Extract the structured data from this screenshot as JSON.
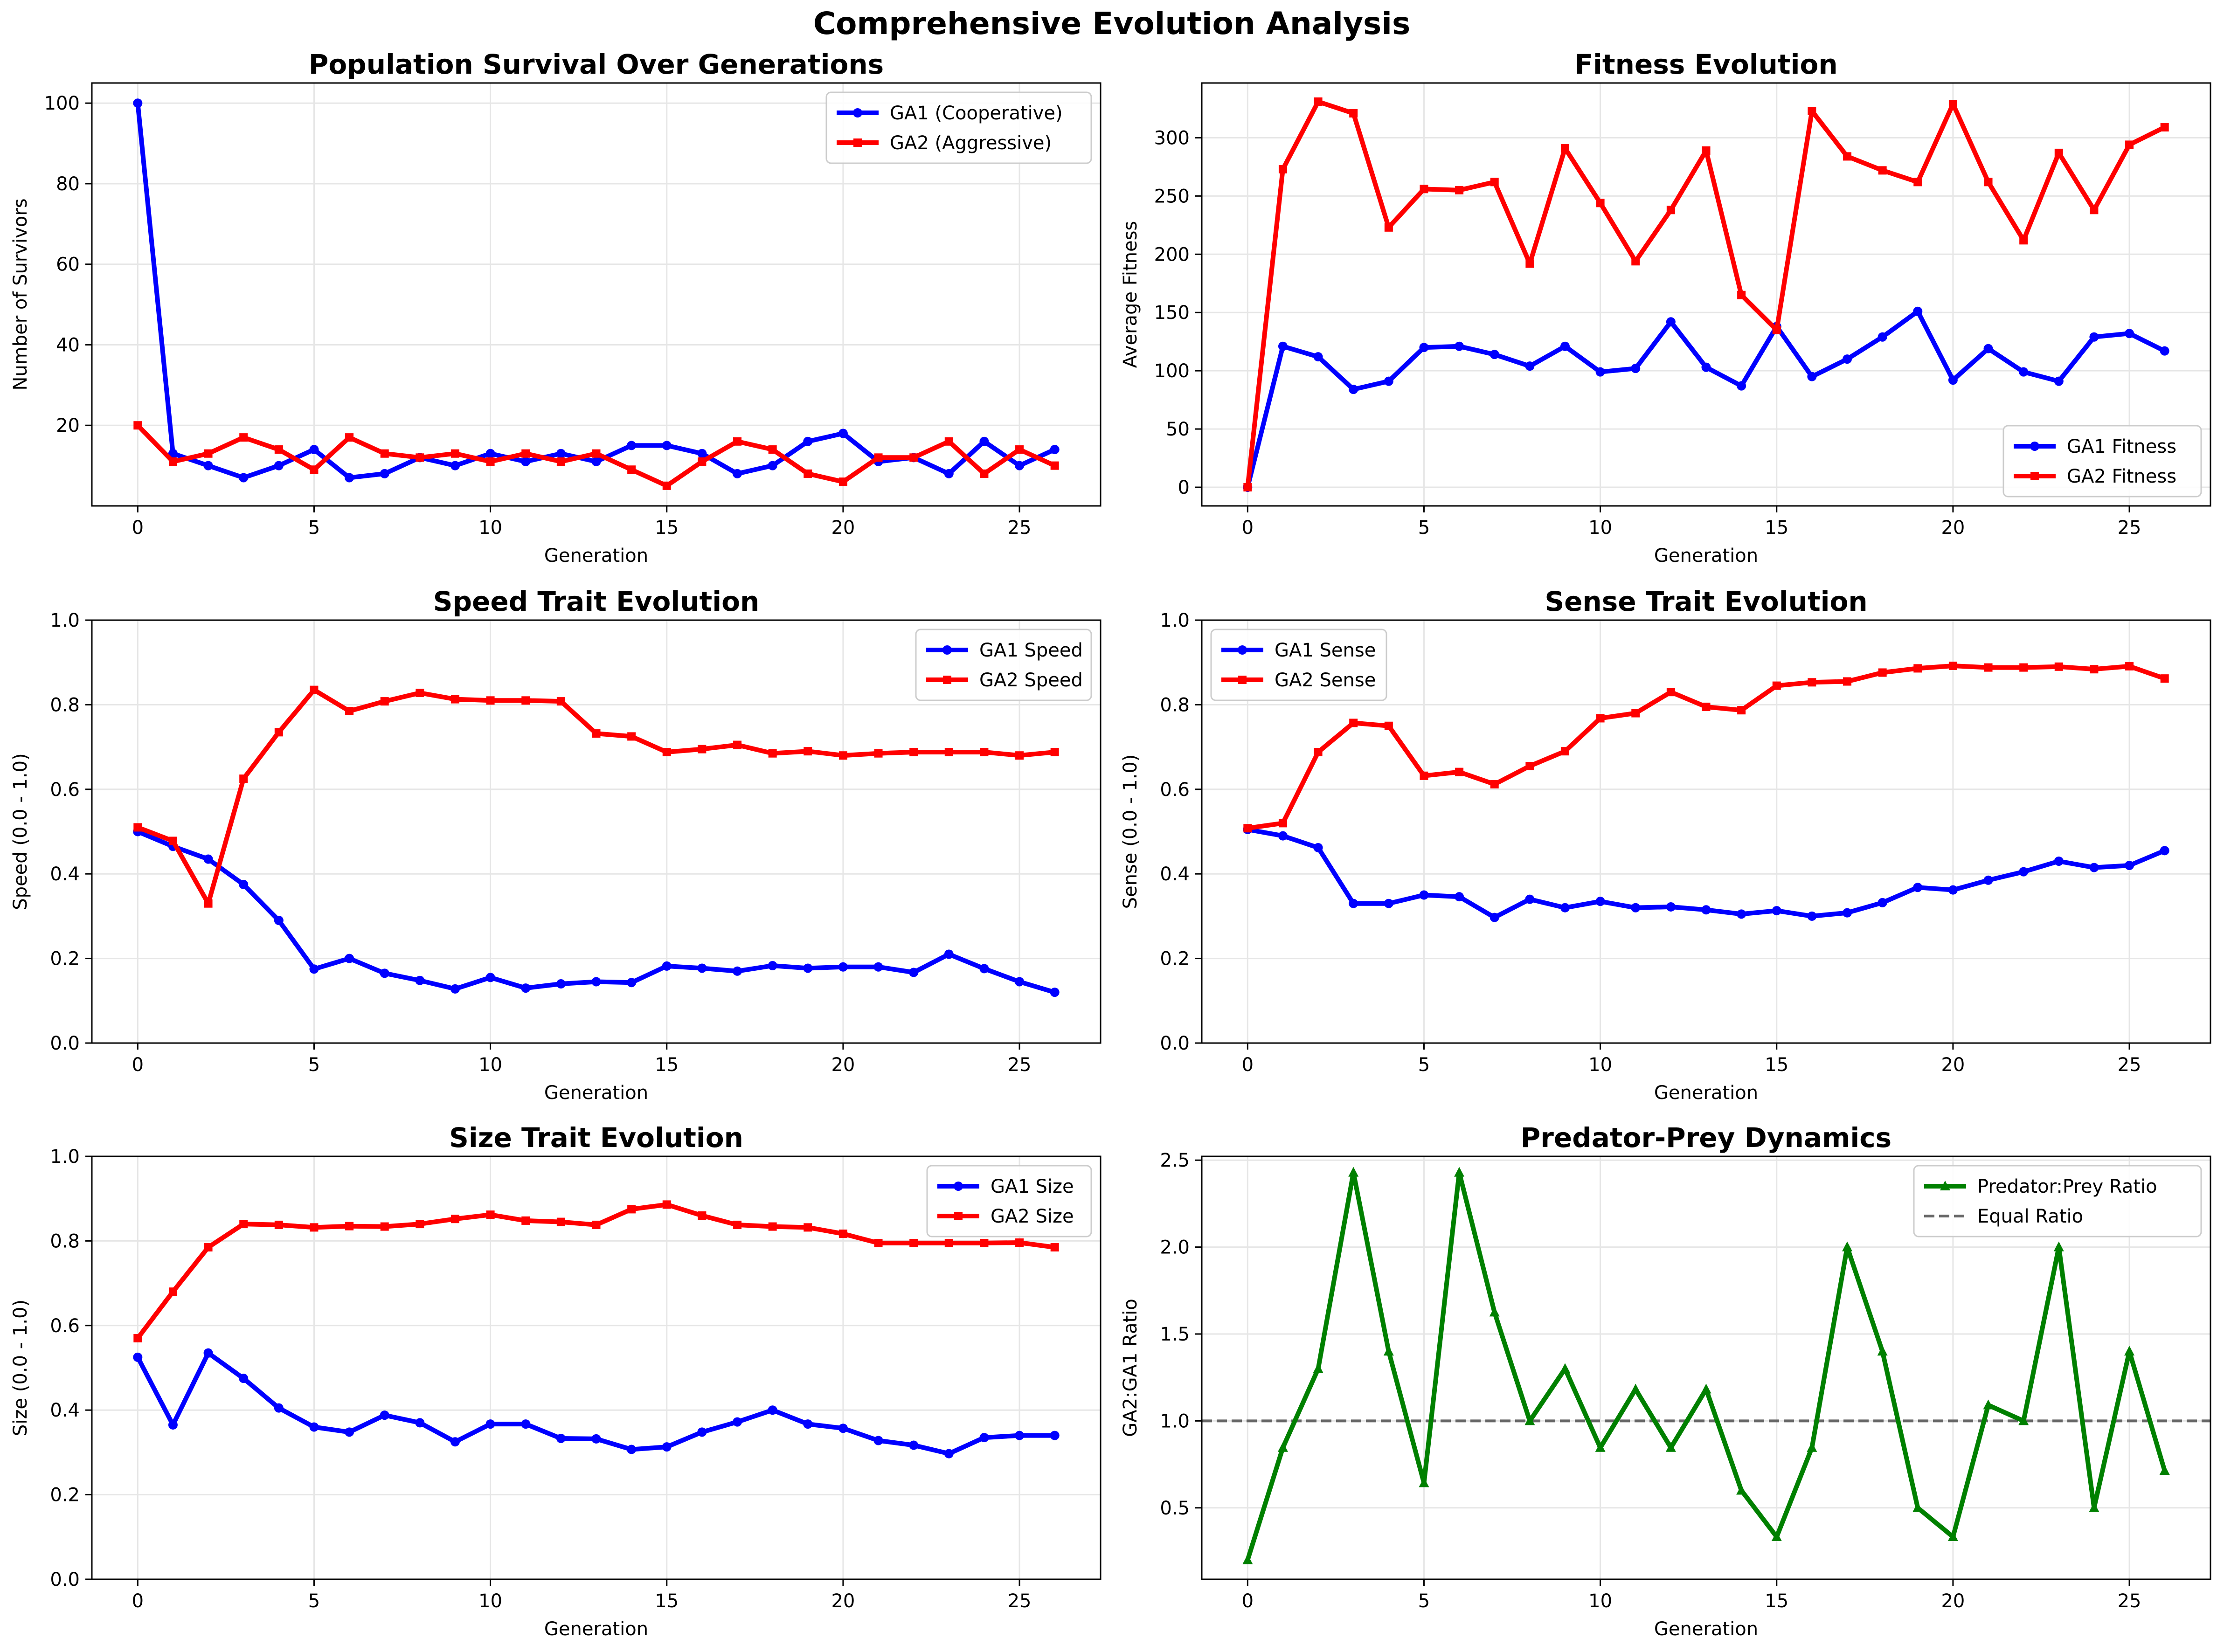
{
  "figure": {
    "title": "Comprehensive Evolution Analysis"
  },
  "colors": {
    "ga1": "#0000ff",
    "ga2": "#ff0000",
    "ratio": "#008000",
    "equal_line": "#666666",
    "grid": "#e6e6e6"
  },
  "chart_data": [
    {
      "id": "population",
      "type": "line",
      "title": "Population Survival Over Generations",
      "xlabel": "Generation",
      "ylabel": "Number of Survivors",
      "xlim": [
        -1.3,
        27.3
      ],
      "ylim": [
        0,
        105
      ],
      "xticks": [
        0,
        5,
        10,
        15,
        20,
        25
      ],
      "yticks": [
        20,
        40,
        60,
        80,
        100
      ],
      "ytick_labels": [
        "20",
        "40",
        "60",
        "80",
        "100"
      ],
      "legend": "top-right",
      "grid": true,
      "x": [
        0,
        1,
        2,
        3,
        4,
        5,
        6,
        7,
        8,
        9,
        10,
        11,
        12,
        13,
        14,
        15,
        16,
        17,
        18,
        19,
        20,
        21,
        22,
        23,
        24,
        25,
        26
      ],
      "series": [
        {
          "name": "GA1 (Cooperative)",
          "color": "#0000ff",
          "marker": "circle",
          "values": [
            100,
            13,
            10,
            7,
            10,
            14,
            7,
            8,
            12,
            10,
            13,
            11,
            13,
            11,
            15,
            15,
            13,
            8,
            10,
            16,
            18,
            11,
            12,
            8,
            16,
            10,
            14
          ]
        },
        {
          "name": "GA2 (Aggressive)",
          "color": "#ff0000",
          "marker": "square",
          "values": [
            20,
            11,
            13,
            17,
            14,
            9,
            17,
            13,
            12,
            13,
            11,
            13,
            11,
            13,
            9,
            5,
            11,
            16,
            14,
            8,
            6,
            12,
            12,
            16,
            8,
            14,
            10
          ]
        }
      ]
    },
    {
      "id": "fitness",
      "type": "line",
      "title": "Fitness Evolution",
      "xlabel": "Generation",
      "ylabel": "Average Fitness",
      "xlim": [
        -1.3,
        27.3
      ],
      "ylim": [
        -16,
        347
      ],
      "xticks": [
        0,
        5,
        10,
        15,
        20,
        25
      ],
      "yticks": [
        0,
        50,
        100,
        150,
        200,
        250,
        300
      ],
      "ytick_labels": [
        "0",
        "50",
        "100",
        "150",
        "200",
        "250",
        "300"
      ],
      "legend": "bottom-right",
      "grid": true,
      "x": [
        0,
        1,
        2,
        3,
        4,
        5,
        6,
        7,
        8,
        9,
        10,
        11,
        12,
        13,
        14,
        15,
        16,
        17,
        18,
        19,
        20,
        21,
        22,
        23,
        24,
        25,
        26
      ],
      "series": [
        {
          "name": "GA1 Fitness",
          "color": "#0000ff",
          "marker": "circle",
          "values": [
            0,
            121,
            112,
            84,
            91,
            120,
            121,
            114,
            104,
            121,
            99,
            102,
            142,
            103,
            87,
            138,
            95,
            110,
            129,
            151,
            92,
            119,
            99,
            91,
            129,
            132,
            117
          ]
        },
        {
          "name": "GA2 Fitness",
          "color": "#ff0000",
          "marker": "square",
          "values": [
            0,
            273,
            331,
            321,
            223,
            256,
            255,
            262,
            192,
            291,
            244,
            194,
            238,
            289,
            165,
            135,
            323,
            284,
            272,
            262,
            329,
            262,
            212,
            287,
            238,
            294,
            309
          ]
        }
      ]
    },
    {
      "id": "speed",
      "type": "line",
      "title": "Speed Trait Evolution",
      "xlabel": "Generation",
      "ylabel": "Speed (0.0 - 1.0)",
      "xlim": [
        -1.3,
        27.3
      ],
      "ylim": [
        0,
        1
      ],
      "xticks": [
        0,
        5,
        10,
        15,
        20,
        25
      ],
      "yticks": [
        0,
        0.2,
        0.4,
        0.6,
        0.8,
        1.0
      ],
      "ytick_labels": [
        "0.0",
        "0.2",
        "0.4",
        "0.6",
        "0.8",
        "1.0"
      ],
      "legend": "top-right",
      "grid": true,
      "x": [
        0,
        1,
        2,
        3,
        4,
        5,
        6,
        7,
        8,
        9,
        10,
        11,
        12,
        13,
        14,
        15,
        16,
        17,
        18,
        19,
        20,
        21,
        22,
        23,
        24,
        25,
        26
      ],
      "series": [
        {
          "name": "GA1 Speed",
          "color": "#0000ff",
          "marker": "circle",
          "values": [
            0.5,
            0.465,
            0.435,
            0.375,
            0.29,
            0.175,
            0.2,
            0.165,
            0.148,
            0.128,
            0.155,
            0.13,
            0.14,
            0.145,
            0.143,
            0.182,
            0.177,
            0.17,
            0.183,
            0.177,
            0.18,
            0.18,
            0.167,
            0.21,
            0.176,
            0.145,
            0.12
          ]
        },
        {
          "name": "GA2 Speed",
          "color": "#ff0000",
          "marker": "square",
          "values": [
            0.51,
            0.478,
            0.33,
            0.625,
            0.735,
            0.835,
            0.785,
            0.808,
            0.828,
            0.813,
            0.81,
            0.81,
            0.808,
            0.732,
            0.725,
            0.688,
            0.695,
            0.705,
            0.685,
            0.69,
            0.68,
            0.685,
            0.688,
            0.688,
            0.688,
            0.68,
            0.688
          ]
        }
      ]
    },
    {
      "id": "sense",
      "type": "line",
      "title": "Sense Trait Evolution",
      "xlabel": "Generation",
      "ylabel": "Sense (0.0 - 1.0)",
      "xlim": [
        -1.3,
        27.3
      ],
      "ylim": [
        0,
        1
      ],
      "xticks": [
        0,
        5,
        10,
        15,
        20,
        25
      ],
      "yticks": [
        0,
        0.2,
        0.4,
        0.6,
        0.8,
        1.0
      ],
      "ytick_labels": [
        "0.0",
        "0.2",
        "0.4",
        "0.6",
        "0.8",
        "1.0"
      ],
      "legend": "top-left",
      "grid": true,
      "x": [
        0,
        1,
        2,
        3,
        4,
        5,
        6,
        7,
        8,
        9,
        10,
        11,
        12,
        13,
        14,
        15,
        16,
        17,
        18,
        19,
        20,
        21,
        22,
        23,
        24,
        25,
        26
      ],
      "series": [
        {
          "name": "GA1 Sense",
          "color": "#0000ff",
          "marker": "circle",
          "values": [
            0.505,
            0.49,
            0.462,
            0.33,
            0.33,
            0.35,
            0.346,
            0.297,
            0.34,
            0.32,
            0.335,
            0.32,
            0.322,
            0.315,
            0.305,
            0.313,
            0.3,
            0.308,
            0.332,
            0.368,
            0.362,
            0.385,
            0.405,
            0.43,
            0.415,
            0.42,
            0.455
          ]
        },
        {
          "name": "GA2 Sense",
          "color": "#ff0000",
          "marker": "square",
          "values": [
            0.508,
            0.52,
            0.688,
            0.757,
            0.75,
            0.632,
            0.641,
            0.612,
            0.655,
            0.69,
            0.768,
            0.78,
            0.83,
            0.795,
            0.787,
            0.845,
            0.853,
            0.855,
            0.876,
            0.886,
            0.892,
            0.888,
            0.888,
            0.89,
            0.884,
            0.891,
            0.862
          ]
        }
      ]
    },
    {
      "id": "size",
      "type": "line",
      "title": "Size Trait Evolution",
      "xlabel": "Generation",
      "ylabel": "Size (0.0 - 1.0)",
      "xlim": [
        -1.3,
        27.3
      ],
      "ylim": [
        0,
        1
      ],
      "xticks": [
        0,
        5,
        10,
        15,
        20,
        25
      ],
      "yticks": [
        0,
        0.2,
        0.4,
        0.6,
        0.8,
        1.0
      ],
      "ytick_labels": [
        "0.0",
        "0.2",
        "0.4",
        "0.6",
        "0.8",
        "1.0"
      ],
      "legend": "top-right",
      "grid": true,
      "x": [
        0,
        1,
        2,
        3,
        4,
        5,
        6,
        7,
        8,
        9,
        10,
        11,
        12,
        13,
        14,
        15,
        16,
        17,
        18,
        19,
        20,
        21,
        22,
        23,
        24,
        25,
        26
      ],
      "series": [
        {
          "name": "GA1 Size",
          "color": "#0000ff",
          "marker": "circle",
          "values": [
            0.525,
            0.365,
            0.535,
            0.475,
            0.405,
            0.36,
            0.348,
            0.388,
            0.37,
            0.325,
            0.367,
            0.367,
            0.333,
            0.332,
            0.307,
            0.313,
            0.348,
            0.372,
            0.4,
            0.367,
            0.357,
            0.328,
            0.317,
            0.297,
            0.335,
            0.34,
            0.34
          ]
        },
        {
          "name": "GA2 Size",
          "color": "#ff0000",
          "marker": "square",
          "values": [
            0.57,
            0.68,
            0.785,
            0.84,
            0.838,
            0.832,
            0.835,
            0.834,
            0.84,
            0.852,
            0.862,
            0.848,
            0.845,
            0.838,
            0.875,
            0.886,
            0.86,
            0.838,
            0.834,
            0.832,
            0.817,
            0.795,
            0.795,
            0.795,
            0.795,
            0.796,
            0.785
          ]
        }
      ]
    },
    {
      "id": "predator-prey",
      "type": "line",
      "title": "Predator-Prey Dynamics",
      "xlabel": "Generation",
      "ylabel": "GA2:GA1 Ratio",
      "xlim": [
        -1.3,
        27.3
      ],
      "ylim": [
        0.089,
        2.522
      ],
      "xticks": [
        0,
        5,
        10,
        15,
        20,
        25
      ],
      "yticks": [
        0.5,
        1.0,
        1.5,
        2.0,
        2.5
      ],
      "ytick_labels": [
        "0.5",
        "1.0",
        "1.5",
        "2.0",
        "2.5"
      ],
      "legend": "top-right",
      "grid": true,
      "x": [
        0,
        1,
        2,
        3,
        4,
        5,
        6,
        7,
        8,
        9,
        10,
        11,
        12,
        13,
        14,
        15,
        16,
        17,
        18,
        19,
        20,
        21,
        22,
        23,
        24,
        25,
        26
      ],
      "series": [
        {
          "name": "Predator:Prey Ratio",
          "color": "#008000",
          "marker": "triangle",
          "values": [
            0.2,
            0.846,
            1.3,
            2.429,
            1.4,
            0.643,
            2.429,
            1.625,
            1.0,
            1.3,
            0.846,
            1.182,
            0.846,
            1.182,
            0.6,
            0.333,
            0.846,
            2.0,
            1.4,
            0.5,
            0.333,
            1.091,
            1.0,
            2.0,
            0.5,
            1.4,
            0.714
          ]
        }
      ],
      "reference_line": {
        "name": "Equal Ratio",
        "value": 1.0,
        "color": "#666666",
        "style": "dashed"
      }
    }
  ]
}
